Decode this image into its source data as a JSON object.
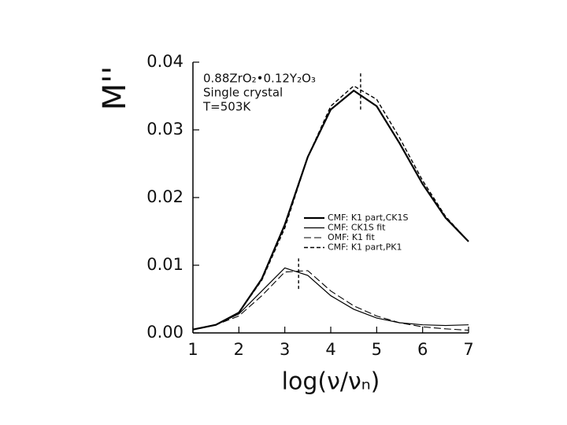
{
  "chart_data": {
    "type": "line",
    "y_label": "M''",
    "x_label": "log(ν/νₙ)",
    "annotations": [
      "0.88ZrO₂•0.12Y₂O₃",
      "Single crystal",
      "T=503K"
    ],
    "xlim": [
      1,
      7
    ],
    "ylim": [
      0,
      0.04
    ],
    "xticks": [
      1,
      2,
      3,
      4,
      5,
      6,
      7
    ],
    "yticks": [
      {
        "value": 0,
        "label": "0.00"
      },
      0.01,
      0.02,
      0.03,
      0.04
    ],
    "x": [
      1,
      1.5,
      2,
      2.5,
      3,
      3.5,
      4,
      4.5,
      5,
      5.5,
      6,
      6.5,
      7
    ],
    "series": [
      {
        "name": "CMF: K1 part,CK1S",
        "color": "#000000",
        "width": 2.2,
        "dash": "none",
        "values": [
          0.0005,
          0.0012,
          0.003,
          0.008,
          0.016,
          0.026,
          0.033,
          0.0358,
          0.0335,
          0.028,
          0.022,
          0.017,
          0.0135
        ]
      },
      {
        "name": "CMF: CK1S fit",
        "color": "#000000",
        "width": 1.2,
        "dash": "none",
        "values": [
          0.0005,
          0.0012,
          0.0028,
          0.0062,
          0.0096,
          0.0085,
          0.0055,
          0.0035,
          0.0022,
          0.0015,
          0.0012,
          0.0011,
          0.0012
        ]
      },
      {
        "name": "OMF: K1 fit",
        "color": "#000000",
        "width": 1.1,
        "dash": "9 4",
        "values": [
          0.0005,
          0.0012,
          0.0025,
          0.0055,
          0.009,
          0.0092,
          0.0062,
          0.004,
          0.0025,
          0.0015,
          0.0009,
          0.0006,
          0.0004
        ]
      },
      {
        "name": "CMF: K1 part,PK1",
        "color": "#000000",
        "width": 1.4,
        "dash": "5 3",
        "values": [
          0.0005,
          0.0012,
          0.003,
          0.0078,
          0.0155,
          0.026,
          0.0335,
          0.0365,
          0.0345,
          0.0288,
          0.0225,
          0.0172,
          0.0135
        ]
      }
    ],
    "peak_markers": [
      {
        "x": 4.65,
        "y": [
          0.033,
          0.0385
        ]
      },
      {
        "x": 3.3,
        "y": [
          0.0065,
          0.011
        ]
      }
    ]
  }
}
